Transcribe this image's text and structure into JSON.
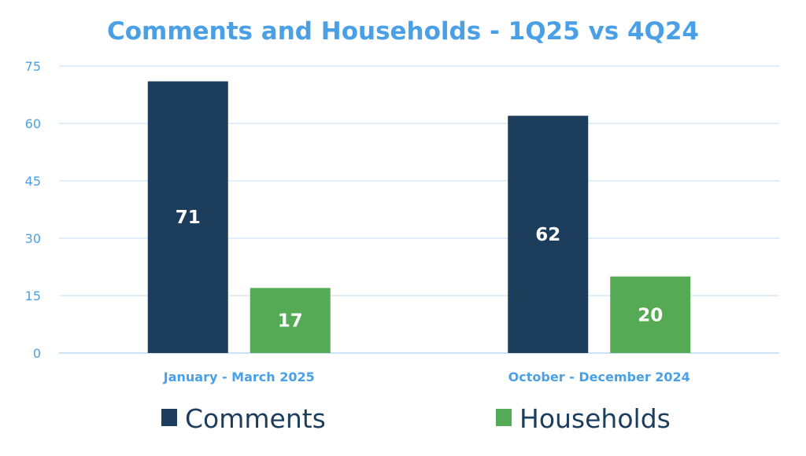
{
  "chart_data": {
    "type": "bar",
    "title": "Comments and Households - 1Q25 vs 4Q24",
    "categories": [
      "January - March 2025",
      "October - December 2024"
    ],
    "series": [
      {
        "name": "Comments",
        "values": [
          71,
          62
        ],
        "color": "#1c3d5c"
      },
      {
        "name": "Households",
        "values": [
          17,
          20
        ],
        "color": "#55ab55"
      }
    ],
    "ylim": [
      0,
      75
    ],
    "yticks": [
      0,
      15,
      30,
      45,
      60,
      75
    ],
    "grid": true,
    "legend": "bottom",
    "xlabel": "",
    "ylabel": ""
  }
}
